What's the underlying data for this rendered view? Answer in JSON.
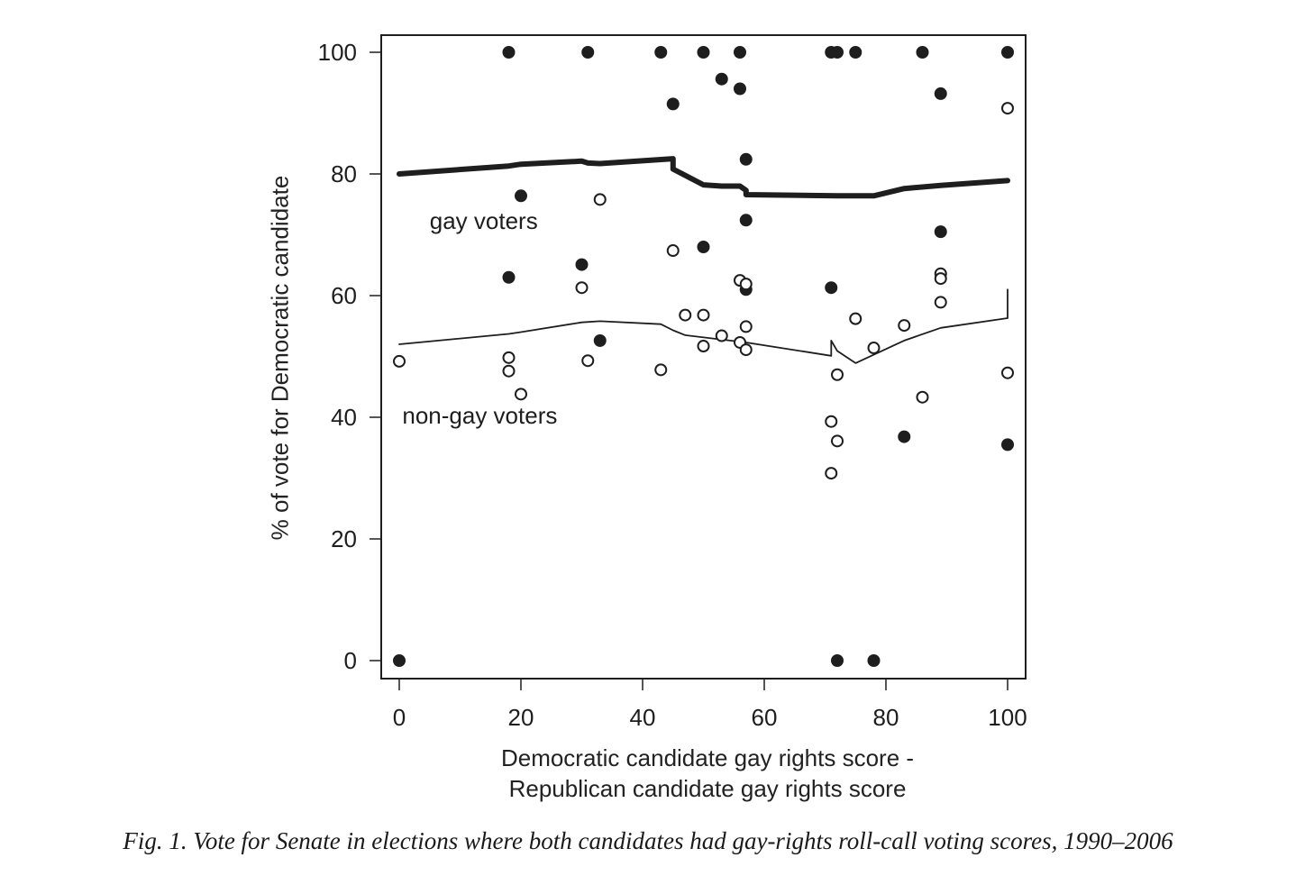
{
  "chart_data": {
    "type": "scatter",
    "title": "",
    "xlabel": [
      "Democratic candidate gay rights score -",
      "Republican candidate gay rights score"
    ],
    "ylabel": "% of vote for Democratic candidate",
    "xlim": [
      0,
      100
    ],
    "ylim": [
      0,
      100
    ],
    "xticks": [
      0,
      20,
      40,
      60,
      80,
      100
    ],
    "yticks": [
      0,
      20,
      40,
      60,
      80,
      100
    ],
    "grid": false,
    "annotations": [
      {
        "text": "gay voters",
        "x": 5,
        "y": 71
      },
      {
        "text": "non-gay voters",
        "x": 0.5,
        "y": 39
      }
    ],
    "series": [
      {
        "name": "gay voters",
        "marker": "filled-circle",
        "points": [
          [
            0,
            0
          ],
          [
            18,
            100
          ],
          [
            31,
            100
          ],
          [
            43,
            100
          ],
          [
            50,
            100
          ],
          [
            56,
            100
          ],
          [
            71,
            100
          ],
          [
            72,
            100
          ],
          [
            75,
            100
          ],
          [
            86,
            100
          ],
          [
            100,
            100
          ],
          [
            53,
            95.6
          ],
          [
            56,
            94
          ],
          [
            45,
            91.5
          ],
          [
            89,
            93.2
          ],
          [
            57,
            82.4
          ],
          [
            20,
            76.4
          ],
          [
            57,
            72.4
          ],
          [
            89,
            70.5
          ],
          [
            50,
            68
          ],
          [
            30,
            65.1
          ],
          [
            18,
            63
          ],
          [
            57,
            61
          ],
          [
            71,
            61.3
          ],
          [
            33,
            52.6
          ],
          [
            83,
            36.8
          ],
          [
            100,
            35.5
          ],
          [
            72,
            0
          ],
          [
            78,
            0
          ]
        ]
      },
      {
        "name": "non-gay voters",
        "marker": "open-circle",
        "points": [
          [
            0,
            49.2
          ],
          [
            18,
            49.8
          ],
          [
            18,
            47.6
          ],
          [
            20,
            43.8
          ],
          [
            30,
            61.3
          ],
          [
            31,
            49.3
          ],
          [
            33,
            75.8
          ],
          [
            43,
            47.8
          ],
          [
            45,
            67.4
          ],
          [
            47,
            56.8
          ],
          [
            50,
            56.8
          ],
          [
            50,
            51.7
          ],
          [
            53,
            53.4
          ],
          [
            56,
            62.5
          ],
          [
            57,
            61.9
          ],
          [
            57,
            54.9
          ],
          [
            56,
            52.3
          ],
          [
            57,
            51.1
          ],
          [
            71,
            39.3
          ],
          [
            72,
            47
          ],
          [
            72,
            36.1
          ],
          [
            71,
            30.8
          ],
          [
            75,
            56.2
          ],
          [
            78,
            51.4
          ],
          [
            83,
            55.1
          ],
          [
            86,
            43.3
          ],
          [
            89,
            63.6
          ],
          [
            89,
            62.8
          ],
          [
            89,
            58.9
          ],
          [
            100,
            90.8
          ],
          [
            100,
            47.3
          ]
        ]
      },
      {
        "name": "gay voters fit",
        "style": "thick-line",
        "line": [
          [
            0,
            80
          ],
          [
            18,
            81.3
          ],
          [
            20,
            81.6
          ],
          [
            30,
            82.1
          ],
          [
            31,
            81.8
          ],
          [
            33,
            81.7
          ],
          [
            45,
            82.5
          ],
          [
            45,
            80.8
          ],
          [
            50,
            78.2
          ],
          [
            53,
            78
          ],
          [
            56,
            78
          ],
          [
            57,
            77.3
          ],
          [
            57,
            76.6
          ],
          [
            72,
            76.4
          ],
          [
            78,
            76.4
          ],
          [
            83,
            77.6
          ],
          [
            89,
            78.1
          ],
          [
            100,
            78.9
          ]
        ]
      },
      {
        "name": "non-gay voters fit",
        "style": "thin-line",
        "line": [
          [
            0,
            52
          ],
          [
            18,
            53.7
          ],
          [
            20,
            54
          ],
          [
            30,
            55.6
          ],
          [
            33,
            55.8
          ],
          [
            43,
            55.3
          ],
          [
            45,
            54.3
          ],
          [
            47,
            53.5
          ],
          [
            57,
            52.3
          ],
          [
            71,
            50.1
          ],
          [
            71,
            52.6
          ],
          [
            72,
            50.9
          ],
          [
            75,
            48.9
          ],
          [
            83,
            52.6
          ],
          [
            89,
            54.7
          ],
          [
            100,
            56.3
          ],
          [
            100,
            61
          ]
        ]
      }
    ],
    "caption": "Fig. 1.  Vote for Senate in elections where both candidates had gay-rights roll-call voting scores, 1990–2006"
  },
  "colors": {
    "ink": "#1e1e1e",
    "background": "#ffffff"
  }
}
